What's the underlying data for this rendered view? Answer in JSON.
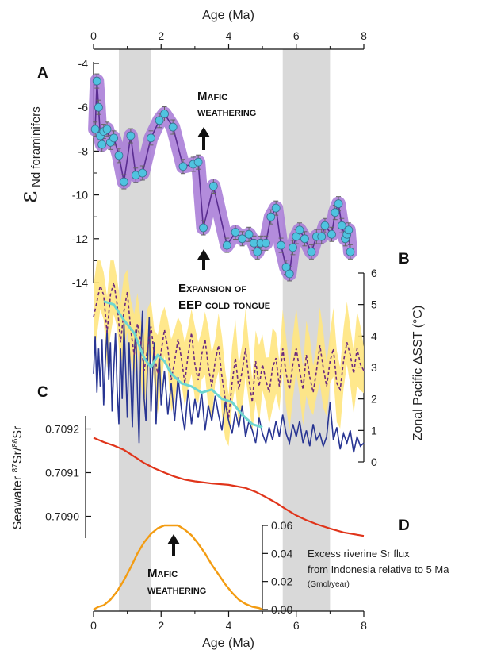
{
  "figure": {
    "top_axis_label": "Age (Ma)",
    "bottom_axis_label": "Age (Ma)",
    "x_ticks": [
      0,
      2,
      4,
      6,
      8
    ],
    "shaded_intervals": [
      [
        0.75,
        1.7
      ],
      [
        5.6,
        7.0
      ]
    ],
    "colors": {
      "enD_line": "#5a2d91",
      "enD_band": "#a678d6",
      "enD_points": "#4fc3e0",
      "sst_band": "#ffe680",
      "sst_dashed": "#6b2a7e",
      "sst_blue": "#283593",
      "sst_cyan": "#6fd6d0",
      "sr_line": "#e0341a",
      "flux_line": "#f39c12",
      "shade": "#d9d9d9"
    }
  },
  "annotations": {
    "mafic_top_line1": "Mafic",
    "mafic_top_line2": "weathering",
    "expansion_line1": "Expansion of",
    "expansion_line2": "EEP cold tongue",
    "mafic_bottom_line1": "Mafic",
    "mafic_bottom_line2": "weathering",
    "flux_note_line1": "Excess riverine Sr flux",
    "flux_note_line2": "from Indonesia relative to 5 Ma",
    "flux_note_line3": "(Gmol/year)"
  },
  "chart_data": [
    {
      "panel": "A",
      "type": "line",
      "title": "",
      "ylabel_symbol": "ε",
      "ylabel_sub": "Nd foraminifers",
      "xlim": [
        0,
        8
      ],
      "ylim": [
        -14,
        -4
      ],
      "y_ticks": [
        -4,
        -6,
        -8,
        -10,
        -12,
        -14
      ],
      "series": [
        {
          "x": [
            0.05,
            0.1,
            0.15,
            0.2,
            0.25,
            0.3,
            0.4,
            0.5,
            0.6,
            0.75,
            0.9,
            1.1,
            1.25,
            1.45,
            1.7,
            1.95,
            2.1,
            2.35,
            2.65,
            2.95,
            3.1,
            3.25,
            3.55,
            3.95,
            4.2,
            4.4,
            4.6,
            4.75,
            4.85,
            4.95,
            5.1,
            5.25,
            5.4,
            5.55,
            5.7,
            5.8,
            5.9,
            6.0,
            6.1,
            6.25,
            6.45,
            6.6,
            6.75,
            6.85,
            7.05,
            7.15,
            7.25,
            7.35,
            7.45,
            7.5,
            7.55,
            7.6
          ],
          "y": [
            -7.0,
            -4.8,
            -6.0,
            -7.3,
            -7.7,
            -7.1,
            -7.0,
            -7.6,
            -7.4,
            -8.2,
            -9.4,
            -7.3,
            -9.1,
            -9.0,
            -7.4,
            -6.6,
            -6.3,
            -6.9,
            -8.7,
            -8.6,
            -8.5,
            -11.5,
            -9.6,
            -12.3,
            -11.7,
            -12.0,
            -11.8,
            -12.2,
            -12.6,
            -12.2,
            -12.2,
            -11.0,
            -10.6,
            -12.3,
            -13.3,
            -13.6,
            -12.4,
            -11.9,
            -11.6,
            -12.0,
            -12.6,
            -11.9,
            -11.9,
            -11.4,
            -11.8,
            -10.8,
            -10.4,
            -11.4,
            -12.0,
            -11.8,
            -11.6,
            -12.6
          ]
        }
      ]
    },
    {
      "panel": "B",
      "type": "line",
      "title": "",
      "ylabel": "Zonal Pacific ΔSST (°C)",
      "xlim": [
        0,
        8
      ],
      "ylim": [
        0,
        6
      ],
      "y_ticks": [
        0,
        1,
        2,
        3,
        4,
        5,
        6
      ],
      "series": [
        {
          "style": "band-center-dashed",
          "x": [
            0.0,
            0.1,
            0.2,
            0.3,
            0.4,
            0.5,
            0.6,
            0.7,
            0.8,
            0.9,
            1.0,
            1.1,
            1.2,
            1.3,
            1.4,
            1.5,
            1.6,
            1.7,
            1.8,
            1.9,
            2.0,
            2.1,
            2.2,
            2.3,
            2.4,
            2.5,
            2.6,
            2.7,
            2.8,
            2.9,
            3.0,
            3.1,
            3.2,
            3.3,
            3.4,
            3.5,
            3.6,
            3.7,
            3.8,
            3.9,
            4.0,
            4.1,
            4.2,
            4.3,
            4.4,
            4.5,
            4.6,
            4.7,
            4.8,
            4.9,
            5.0,
            5.1,
            5.2,
            5.3,
            5.4,
            5.5,
            5.6,
            5.7,
            5.8,
            5.9,
            6.0,
            6.1,
            6.2,
            6.3,
            6.4,
            6.5,
            6.6,
            6.7,
            6.8,
            6.9,
            7.0,
            7.1,
            7.2,
            7.3,
            7.4,
            7.5,
            7.6,
            7.7,
            7.8,
            7.9,
            8.0
          ],
          "y": [
            4.6,
            5.1,
            5.6,
            5.3,
            4.1,
            5.3,
            5.7,
            5.0,
            3.8,
            4.8,
            5.4,
            4.2,
            3.4,
            4.4,
            3.8,
            2.9,
            3.6,
            4.3,
            3.4,
            2.8,
            3.5,
            4.2,
            3.6,
            2.6,
            3.2,
            3.9,
            3.3,
            2.5,
            3.4,
            4.1,
            3.1,
            2.6,
            3.4,
            3.9,
            3.0,
            2.4,
            3.2,
            3.7,
            2.7,
            2.0,
            1.4,
            2.5,
            3.3,
            2.3,
            2.9,
            3.6,
            2.6,
            1.9,
            3.2,
            2.4,
            3.1,
            2.6,
            2.2,
            3.0,
            3.3,
            2.4,
            3.6,
            2.8,
            2.3,
            3.1,
            3.6,
            2.9,
            2.3,
            3.4,
            2.7,
            2.2,
            2.9,
            3.7,
            3.0,
            2.4,
            3.2,
            3.6,
            2.5,
            2.3,
            3.2,
            3.8,
            3.4,
            2.8,
            3.6,
            3.1,
            2.9
          ]
        },
        {
          "style": "band",
          "band_halfwidth": 1.0
        },
        {
          "style": "solid-blue",
          "x": [
            0.0,
            0.05,
            0.1,
            0.15,
            0.2,
            0.25,
            0.3,
            0.35,
            0.4,
            0.45,
            0.5,
            0.55,
            0.6,
            0.65,
            0.7,
            0.75,
            0.8,
            0.85,
            0.9,
            0.95,
            1.0,
            1.05,
            1.1,
            1.15,
            1.2,
            1.25,
            1.3,
            1.35,
            1.4,
            1.45,
            1.5,
            1.55,
            1.6,
            1.65,
            1.7,
            1.75,
            1.8,
            1.85,
            1.9,
            1.95,
            2.0,
            2.1,
            2.2,
            2.3,
            2.4,
            2.5,
            2.6,
            2.7,
            2.8,
            2.9,
            3.0,
            3.1,
            3.2,
            3.3,
            3.4,
            3.5,
            3.6,
            3.7,
            3.8,
            3.9,
            4.0,
            4.1,
            4.2,
            4.3,
            4.4,
            4.5,
            4.6,
            4.7,
            4.8,
            4.9,
            5.0,
            5.1,
            5.2,
            5.3,
            5.4,
            5.5,
            5.6,
            5.7,
            5.8,
            5.9,
            6.0,
            6.1,
            6.2,
            6.3,
            6.4,
            6.5,
            6.6,
            6.7,
            6.8,
            6.9,
            7.0,
            7.1,
            7.2,
            7.3,
            7.4,
            7.5,
            7.6,
            7.7,
            7.8,
            7.9,
            8.0
          ],
          "y": [
            2.8,
            4.0,
            2.2,
            3.6,
            2.4,
            3.9,
            1.8,
            3.2,
            4.2,
            2.6,
            3.8,
            1.6,
            3.0,
            4.1,
            2.3,
            1.2,
            3.6,
            2.0,
            4.4,
            3.0,
            1.4,
            3.8,
            2.6,
            1.1,
            3.4,
            4.2,
            2.2,
            0.6,
            3.6,
            4.8,
            2.0,
            1.3,
            3.2,
            4.6,
            1.6,
            2.9,
            3.8,
            1.2,
            2.6,
            3.4,
            1.8,
            2.9,
            1.5,
            2.5,
            1.3,
            2.7,
            1.7,
            1.0,
            2.3,
            1.2,
            2.0,
            1.4,
            2.2,
            1.0,
            1.8,
            1.3,
            2.1,
            1.5,
            1.0,
            1.9,
            1.3,
            0.9,
            1.6,
            1.1,
            1.8,
            0.8,
            1.3,
            1.0,
            0.6,
            1.4,
            0.9,
            0.6,
            1.1,
            0.7,
            1.3,
            0.8,
            1.5,
            0.9,
            0.6,
            1.2,
            0.8,
            1.3,
            0.6,
            1.0,
            0.5,
            1.2,
            0.7,
            0.9,
            0.5,
            0.8,
            1.9,
            0.7,
            1.1,
            0.4,
            0.9,
            0.6,
            1.0,
            0.3,
            0.8,
            0.5,
            0.6
          ]
        },
        {
          "style": "solid-cyan",
          "x": [
            0.3,
            0.6,
            0.9,
            1.2,
            1.5,
            1.7,
            1.9,
            2.1,
            2.3,
            2.6,
            2.9,
            3.2,
            3.5,
            3.8,
            4.1,
            4.4,
            4.7,
            5.0
          ],
          "y": [
            5.1,
            5.0,
            4.5,
            4.1,
            3.3,
            3.0,
            3.4,
            3.2,
            2.8,
            2.5,
            2.4,
            2.2,
            2.3,
            2.0,
            1.9,
            1.5,
            1.2,
            1.1
          ]
        }
      ]
    },
    {
      "panel": "C",
      "type": "line",
      "title": "",
      "ylabel": "Seawater 87Sr/86Sr",
      "xlim": [
        0,
        8
      ],
      "ylim": [
        0.70895,
        0.70923
      ],
      "y_ticks": [
        0.709,
        0.7091,
        0.7092
      ],
      "y_tick_labels": [
        "0.7090",
        "0.7091",
        "0.7092"
      ],
      "series": [
        {
          "x": [
            0.0,
            0.3,
            0.6,
            0.9,
            1.2,
            1.5,
            1.8,
            2.1,
            2.4,
            2.7,
            3.0,
            3.5,
            4.0,
            4.5,
            4.8,
            5.1,
            5.4,
            5.7,
            6.0,
            6.3,
            6.6,
            7.0,
            7.4,
            8.0
          ],
          "y": [
            0.70918,
            0.70917,
            0.709162,
            0.709152,
            0.709137,
            0.709122,
            0.70911,
            0.7091,
            0.709091,
            0.709084,
            0.70908,
            0.709075,
            0.709072,
            0.709065,
            0.709056,
            0.709044,
            0.709031,
            0.709016,
            0.709002,
            0.708991,
            0.708982,
            0.708972,
            0.708963,
            0.708955
          ]
        }
      ]
    },
    {
      "panel": "D",
      "type": "line",
      "title": "",
      "xlim": [
        0,
        8
      ],
      "ylim": [
        0,
        0.06
      ],
      "y_ticks": [
        0.0,
        0.02,
        0.04,
        0.06
      ],
      "y_tick_labels": [
        "0.00",
        "0.02",
        "0.04",
        "0.06"
      ],
      "series": [
        {
          "x": [
            0.0,
            0.15,
            0.3,
            0.5,
            0.7,
            0.9,
            1.1,
            1.3,
            1.5,
            1.7,
            1.9,
            2.1,
            2.3,
            2.5,
            2.7,
            2.9,
            3.1,
            3.3,
            3.5,
            3.7,
            3.9,
            4.1,
            4.3,
            4.5,
            4.7,
            4.9,
            5.0
          ],
          "y": [
            0.0,
            0.002,
            0.003,
            0.007,
            0.013,
            0.021,
            0.03,
            0.04,
            0.048,
            0.054,
            0.058,
            0.06,
            0.06,
            0.06,
            0.057,
            0.053,
            0.047,
            0.04,
            0.032,
            0.025,
            0.018,
            0.012,
            0.007,
            0.004,
            0.002,
            0.001,
            0.0
          ]
        }
      ]
    }
  ]
}
